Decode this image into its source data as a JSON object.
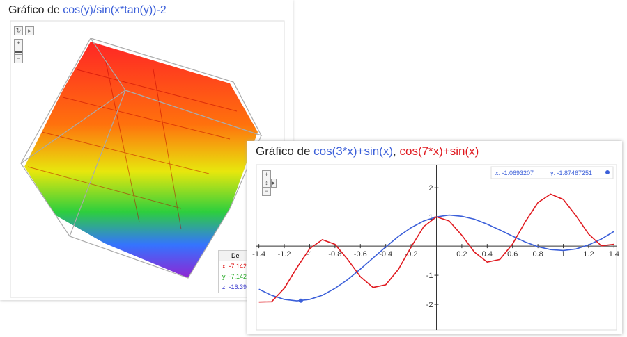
{
  "left_panel": {
    "title_prefix": "Gráfico de",
    "formula": "cos(y)/sin(x*tan(y))-2",
    "info": {
      "header": "De",
      "rows": [
        [
          "x",
          "-7.142"
        ],
        [
          "y",
          "-7.142"
        ],
        [
          "z",
          "-16.39"
        ]
      ]
    }
  },
  "chart_data": {
    "type": "line",
    "title_prefix": "Gráfico de",
    "title_separator": ",",
    "x": [
      -1.4,
      -1.3,
      -1.2,
      -1.1,
      -1.0,
      -0.9,
      -0.8,
      -0.7,
      -0.6,
      -0.5,
      -0.4,
      -0.3,
      -0.2,
      -0.1,
      0,
      0.1,
      0.2,
      0.3,
      0.4,
      0.5,
      0.6,
      0.7,
      0.8,
      0.9,
      1.0,
      1.1,
      1.2,
      1.3,
      1.4
    ],
    "series": [
      {
        "name": "cos(3*x)+sin(x)",
        "color": "#3b5fd9",
        "values": [
          -1.48,
          -1.69,
          -1.83,
          -1.88,
          -1.83,
          -1.69,
          -1.45,
          -1.15,
          -0.79,
          -0.41,
          -0.03,
          0.33,
          0.63,
          0.86,
          1,
          1.06,
          1.02,
          0.92,
          0.75,
          0.55,
          0.34,
          0.14,
          -0.02,
          -0.12,
          -0.15,
          -0.1,
          0.04,
          0.24,
          0.5
        ]
      },
      {
        "name": "cos(7*x)+sin(x)",
        "color": "#e0191f",
        "values": [
          -1.92,
          -1.91,
          -1.45,
          -0.74,
          -0.09,
          0.22,
          0.06,
          -0.46,
          -1.05,
          -1.42,
          -1.33,
          -0.8,
          -0.03,
          0.67,
          1,
          0.86,
          0.37,
          -0.21,
          -0.55,
          -0.46,
          0.07,
          0.83,
          1.49,
          1.78,
          1.6,
          1.04,
          0.41,
          0.01,
          0.06
        ]
      }
    ],
    "xlim": [
      -1.42,
      1.42
    ],
    "ylim": [
      -2.88,
      2.79
    ],
    "xticks": [
      -1.4,
      -1.2,
      -1,
      -0.8,
      -0.6,
      -0.4,
      -0.2,
      0.2,
      0.4,
      0.6,
      0.8,
      1,
      1.2,
      1.4
    ],
    "yticks": [
      -2,
      -1,
      1,
      2
    ],
    "cursor": {
      "x": -1.0693207,
      "y": -1.87467251,
      "x_label": "x: -1.0693207",
      "y_label": "y: -1.87467251"
    }
  }
}
